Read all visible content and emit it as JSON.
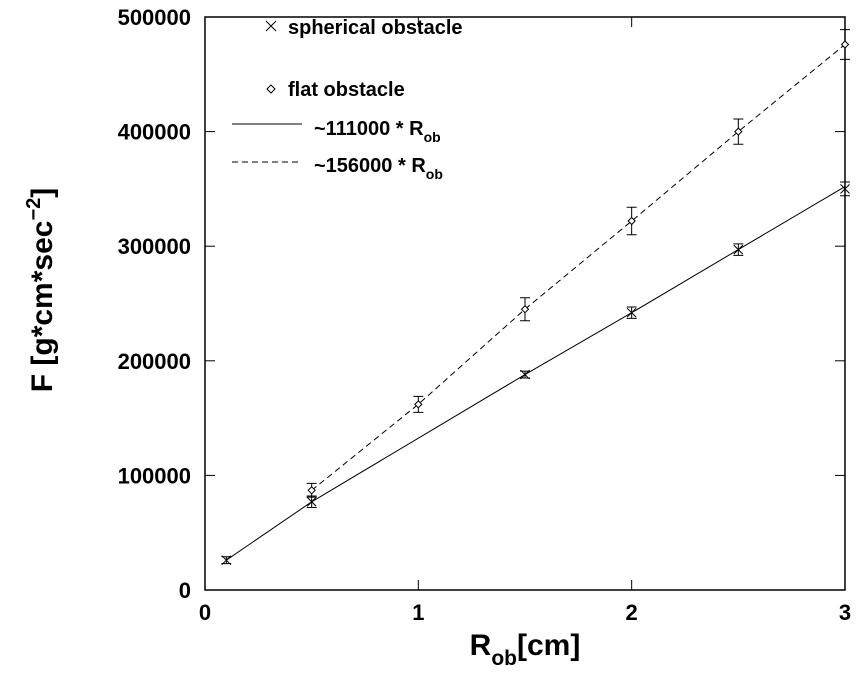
{
  "chart_data": {
    "type": "scatter",
    "xlabel": "R",
    "xlabel_sub": "ob",
    "xlabel_tail": "[cm]",
    "ylabel": "F [g*cm*sec",
    "ylabel_sup": "−2",
    "ylabel_tail": "]",
    "xlim": [
      0,
      3
    ],
    "ylim": [
      0,
      500000
    ],
    "xticks": [
      "0",
      "1",
      "2",
      "3"
    ],
    "yticks": [
      "0",
      "100000",
      "200000",
      "300000",
      "400000",
      "500000"
    ],
    "grid": false,
    "legend_position": "top-left",
    "series": [
      {
        "name": "spherical obstacle",
        "marker": "x",
        "x": [
          0.1,
          0.5,
          1.5,
          2.0,
          2.5,
          3.0
        ],
        "y": [
          26000,
          77000,
          188000,
          242000,
          297000,
          350000
        ],
        "err": [
          3000,
          5000,
          3000,
          5000,
          5000,
          6000
        ]
      },
      {
        "name": "flat obstacle",
        "marker": "diamond",
        "x": [
          0.5,
          1.0,
          1.5,
          2.0,
          2.5,
          3.0
        ],
        "y": [
          87000,
          162000,
          245000,
          322000,
          400000,
          476000
        ],
        "err": [
          6000,
          7000,
          10000,
          12000,
          11000,
          13000
        ]
      },
      {
        "name": "~111000 * R",
        "name_sub": "ob",
        "style": "solid",
        "x": [
          0.1,
          0.5,
          1.5,
          2.0,
          2.5,
          3.0
        ],
        "y": [
          26000,
          77000,
          188000,
          242000,
          297000,
          352000
        ]
      },
      {
        "name": "~156000 * R",
        "name_sub": "ob",
        "style": "dashed",
        "x": [
          0.5,
          1.0,
          1.5,
          2.0,
          2.5,
          3.0
        ],
        "y": [
          87000,
          162000,
          245000,
          322000,
          400000,
          476000
        ]
      }
    ]
  }
}
